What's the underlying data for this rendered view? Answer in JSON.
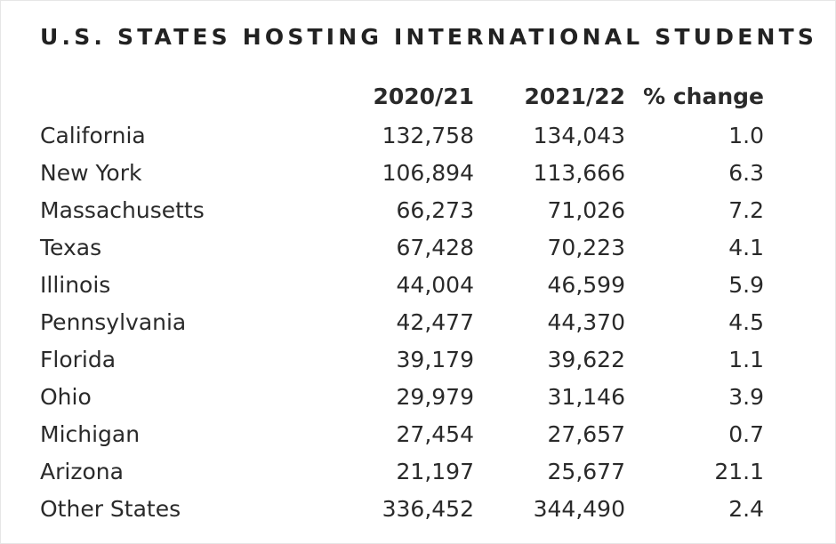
{
  "header": {
    "title": "U.S. STATES HOSTING INTERNATIONAL STUDENTS"
  },
  "table": {
    "columns": [
      "2020/21",
      "2021/22",
      "% change"
    ],
    "rows": [
      [
        "California",
        "132,758",
        "134,043",
        "1.0"
      ],
      [
        "New York",
        "106,894",
        "113,666",
        "6.3"
      ],
      [
        "Massachusetts",
        "66,273",
        "71,026",
        "7.2"
      ],
      [
        "Texas",
        "67,428",
        "70,223",
        "4.1"
      ],
      [
        "Illinois",
        "44,004",
        "46,599",
        "5.9"
      ],
      [
        "Pennsylvania",
        "42,477",
        "44,370",
        "4.5"
      ],
      [
        "Florida",
        "39,179",
        "39,622",
        "1.1"
      ],
      [
        "Ohio",
        "29,979",
        "31,146",
        "3.9"
      ],
      [
        "Michigan",
        "27,454",
        "27,657",
        "0.7"
      ],
      [
        "Arizona",
        "21,197",
        "25,677",
        "21.1"
      ],
      [
        "Other States",
        "336,452",
        "344,490",
        "2.4"
      ]
    ]
  }
}
